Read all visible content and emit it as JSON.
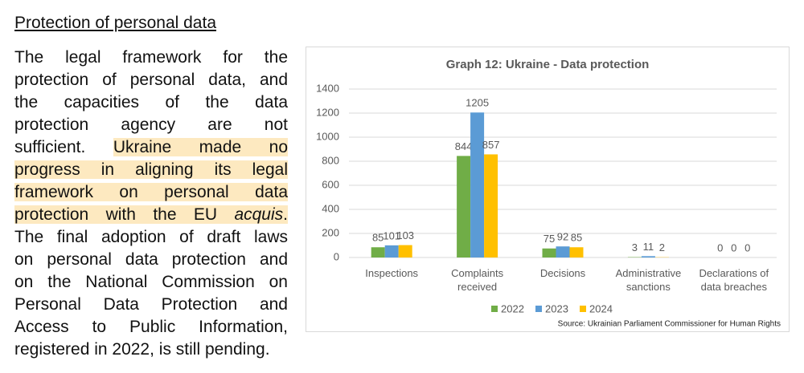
{
  "heading": "Protection of personal data",
  "paragraph": {
    "lines": [
      {
        "segments": [
          {
            "text": "The legal framework for the"
          }
        ]
      },
      {
        "segments": [
          {
            "text": "protection of personal data, and"
          }
        ]
      },
      {
        "segments": [
          {
            "text": "the capacities of the data"
          }
        ]
      },
      {
        "segments": [
          {
            "text": "protection agency are not"
          }
        ]
      },
      {
        "segments": [
          {
            "text": "sufficient. "
          },
          {
            "text": "Ukraine made no",
            "highlight": true
          }
        ]
      },
      {
        "segments": [
          {
            "text": "progress in aligning its legal",
            "highlight": true
          }
        ]
      },
      {
        "segments": [
          {
            "text": "framework on personal data",
            "highlight": true
          }
        ]
      },
      {
        "segments": [
          {
            "text": "protection with the EU ",
            "highlight": true
          },
          {
            "text": "acquis",
            "highlight": true,
            "italic": true
          },
          {
            "text": ".",
            "highlight": true
          }
        ]
      },
      {
        "segments": [
          {
            "text": "The final adoption of draft laws"
          }
        ]
      },
      {
        "segments": [
          {
            "text": "on personal data protection and"
          }
        ]
      },
      {
        "segments": [
          {
            "text": "on the National Commission on"
          }
        ]
      },
      {
        "segments": [
          {
            "text": "Personal Data Protection and"
          }
        ]
      },
      {
        "segments": [
          {
            "text": "Access to Public Information,"
          }
        ]
      },
      {
        "segments": [
          {
            "text": "registered in 2022, is still pending."
          }
        ]
      }
    ]
  },
  "chart_data": {
    "type": "bar",
    "title": "Graph 12: Ukraine - Data protection",
    "categories": [
      "Inspections",
      "Complaints received",
      "Decisions",
      "Administrative sanctions",
      "Declarations of data breaches"
    ],
    "series": [
      {
        "name": "2022",
        "color": "#70ad47",
        "values": [
          85,
          844,
          75,
          3,
          0
        ]
      },
      {
        "name": "2023",
        "color": "#5b9bd5",
        "values": [
          101,
          1205,
          92,
          11,
          0
        ]
      },
      {
        "name": "2024",
        "color": "#ffc000",
        "values": [
          103,
          857,
          85,
          2,
          0
        ]
      }
    ],
    "ylim": [
      0,
      1400
    ],
    "yticks": [
      0,
      200,
      400,
      600,
      800,
      1000,
      1200,
      1400
    ],
    "grid": true,
    "legend": "bottom",
    "source": "Source: Ukrainian Parliament Commissioner for Human Rights"
  }
}
